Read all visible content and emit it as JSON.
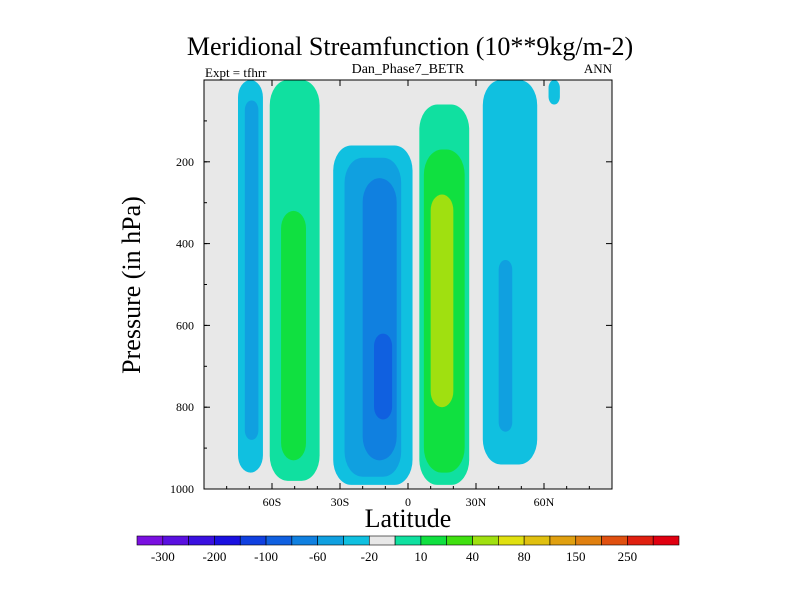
{
  "chart_data": {
    "type": "contour",
    "title": "Meridional Streamfunction (10**9kg/m-2)",
    "subtitle": "Dan_Phase7_BETR",
    "left_label": "Expt = tfhrr",
    "right_label": "ANN",
    "xlabel": "Latitude",
    "ylabel": "Pressure (in hPa)",
    "xlim": [
      -90,
      90
    ],
    "ylim": [
      1000,
      0
    ],
    "x_ticks": [
      {
        "value": -60,
        "label": "60S"
      },
      {
        "value": -30,
        "label": "30S"
      },
      {
        "value": 0,
        "label": "0"
      },
      {
        "value": 30,
        "label": "30N"
      },
      {
        "value": 60,
        "label": "60N"
      }
    ],
    "y_ticks": [
      {
        "value": 200,
        "label": "200"
      },
      {
        "value": 400,
        "label": "400"
      },
      {
        "value": 600,
        "label": "600"
      },
      {
        "value": 800,
        "label": "800"
      },
      {
        "value": 1000,
        "label": "1000"
      }
    ],
    "colorbar": {
      "colors": [
        "#7a10e0",
        "#5a10e0",
        "#3a10e0",
        "#1a10e0",
        "#1040e0",
        "#1060e0",
        "#1080e0",
        "#10a0e0",
        "#10c0e0",
        "#e8e8e8",
        "#10e0a0",
        "#10e040",
        "#40e010",
        "#a0e010",
        "#e0e010",
        "#e0c010",
        "#e0a010",
        "#e08010",
        "#e05010",
        "#e02010",
        "#e00010"
      ],
      "labels": [
        "-300",
        "-200",
        "-100",
        "-60",
        "-20",
        "10",
        "40",
        "80",
        "150",
        "250"
      ]
    },
    "regions": [
      {
        "name": "southern-polar-cell-outer",
        "level": -20,
        "lat": [
          -75,
          -64
        ],
        "p": [
          0,
          960
        ]
      },
      {
        "name": "southern-polar-cell-inner",
        "level": -40,
        "lat": [
          -72,
          -66
        ],
        "p": [
          50,
          880
        ]
      },
      {
        "name": "ferrel-cell-south-outer",
        "level": 10,
        "lat": [
          -61,
          -39
        ],
        "p": [
          0,
          980
        ]
      },
      {
        "name": "ferrel-cell-south-core",
        "level": 20,
        "lat": [
          -56,
          -45
        ],
        "p": [
          320,
          930
        ]
      },
      {
        "name": "hadley-cell-south-outer",
        "level": -20,
        "lat": [
          -33,
          2
        ],
        "p": [
          160,
          990
        ]
      },
      {
        "name": "hadley-cell-south-mid",
        "level": -40,
        "lat": [
          -28,
          -3
        ],
        "p": [
          190,
          970
        ]
      },
      {
        "name": "hadley-cell-south-inner",
        "level": -60,
        "lat": [
          -20,
          -5
        ],
        "p": [
          240,
          930
        ]
      },
      {
        "name": "hadley-cell-south-core",
        "level": -80,
        "lat": [
          -15,
          -7
        ],
        "p": [
          620,
          830
        ]
      },
      {
        "name": "hadley-cell-north-outer",
        "level": 10,
        "lat": [
          5,
          27
        ],
        "p": [
          60,
          990
        ]
      },
      {
        "name": "hadley-cell-north-mid",
        "level": 20,
        "lat": [
          7,
          25
        ],
        "p": [
          170,
          960
        ]
      },
      {
        "name": "hadley-cell-north-core",
        "level": 30,
        "lat": [
          10,
          20
        ],
        "p": [
          280,
          800
        ]
      },
      {
        "name": "ferrel-cell-north",
        "level": -20,
        "lat": [
          33,
          57
        ],
        "p": [
          0,
          940
        ]
      },
      {
        "name": "ferrel-cell-north-core",
        "level": -40,
        "lat": [
          40,
          46
        ],
        "p": [
          440,
          860
        ]
      },
      {
        "name": "northern-polar-cell",
        "level": -20,
        "lat": [
          62,
          67
        ],
        "p": [
          0,
          60
        ]
      }
    ]
  }
}
